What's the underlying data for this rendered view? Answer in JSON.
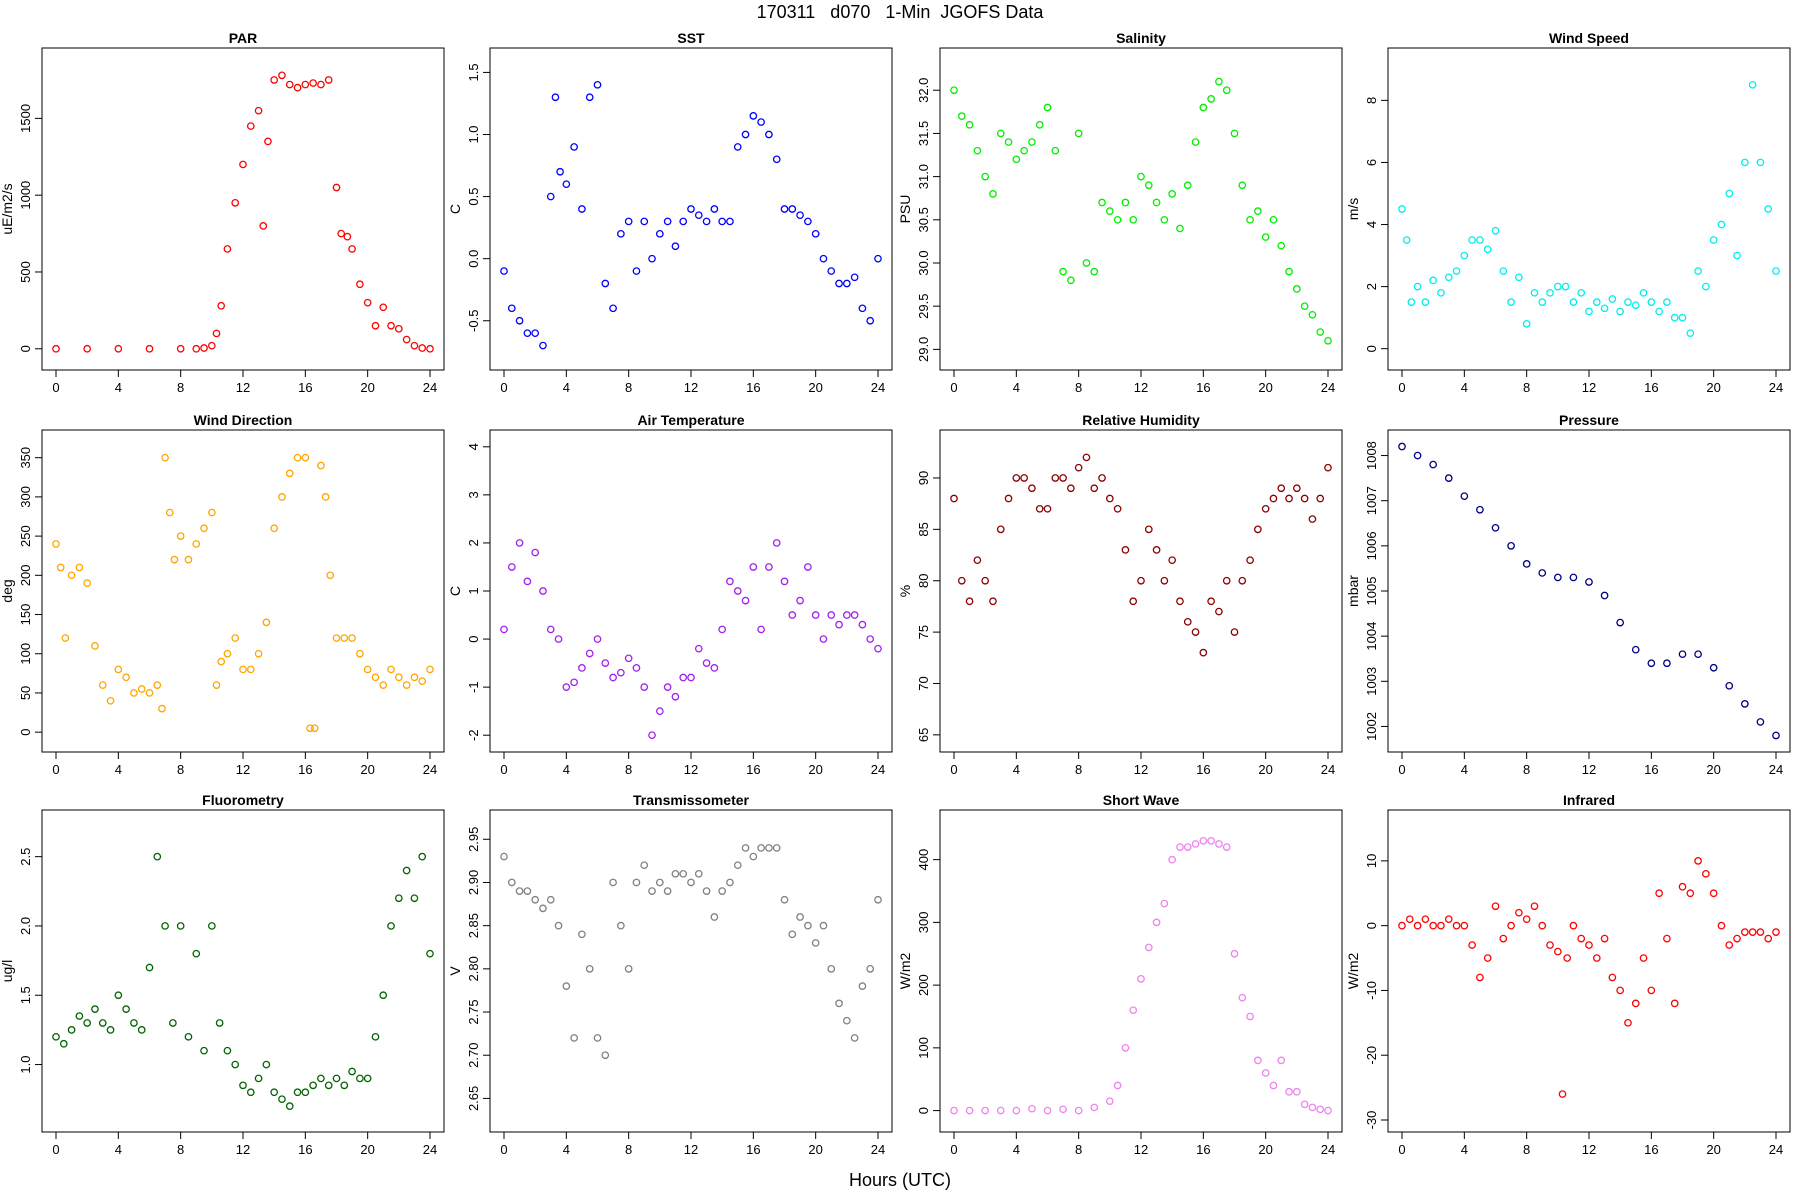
{
  "header": {
    "title": "170311   d070   1-Min  JGOFS Data"
  },
  "footer": {
    "xlabel": "Hours (UTC)"
  },
  "chart_data": [
    {
      "type": "scatter",
      "title": "PAR",
      "ylabel": "uE/m2/s",
      "color": "#ff0000",
      "xlim": [
        0,
        24
      ],
      "ylim": [
        -60,
        1880
      ],
      "xticks": [
        0,
        4,
        8,
        12,
        16,
        20,
        24
      ],
      "yticks": [
        0,
        500,
        1000,
        1500
      ],
      "x": [
        0,
        2,
        4,
        6,
        8,
        9,
        9.5,
        10,
        10.3,
        10.6,
        11,
        11.5,
        12,
        12.5,
        13,
        13.3,
        13.6,
        14,
        14.5,
        15,
        15.5,
        16,
        16.5,
        17,
        17.5,
        18,
        18.3,
        18.7,
        19,
        19.5,
        20,
        20.5,
        21,
        21.5,
        22,
        22.5,
        23,
        23.5,
        24
      ],
      "y": [
        0,
        0,
        0,
        0,
        0,
        0,
        5,
        20,
        100,
        280,
        650,
        950,
        1200,
        1450,
        1550,
        800,
        1350,
        1750,
        1780,
        1720,
        1700,
        1720,
        1730,
        1720,
        1750,
        1050,
        750,
        730,
        650,
        420,
        300,
        150,
        270,
        150,
        130,
        60,
        20,
        5,
        0
      ]
    },
    {
      "type": "scatter",
      "title": "SST",
      "ylabel": "C",
      "color": "#0000ff",
      "xlim": [
        0,
        24
      ],
      "ylim": [
        -0.8,
        1.6
      ],
      "xticks": [
        0,
        4,
        8,
        12,
        16,
        20,
        24
      ],
      "yticks": [
        -0.5,
        0.0,
        0.5,
        1.0,
        1.5
      ],
      "x": [
        0,
        0.5,
        1,
        1.5,
        2,
        2.5,
        3,
        3.3,
        3.6,
        4,
        4.5,
        5,
        5.5,
        6,
        6.5,
        7,
        7.5,
        8,
        8.5,
        9,
        9.5,
        10,
        10.5,
        11,
        11.5,
        12,
        12.5,
        13,
        13.5,
        14,
        14.5,
        15,
        15.5,
        16,
        16.5,
        17,
        17.5,
        18,
        18.5,
        19,
        19.5,
        20,
        20.5,
        21,
        21.5,
        22,
        22.5,
        23,
        23.5,
        24
      ],
      "y": [
        -0.1,
        -0.4,
        -0.5,
        -0.6,
        -0.6,
        -0.7,
        0.5,
        1.3,
        0.7,
        0.6,
        0.9,
        0.4,
        1.3,
        1.4,
        -0.2,
        -0.4,
        0.2,
        0.3,
        -0.1,
        0.3,
        0.0,
        0.2,
        0.3,
        0.1,
        0.3,
        0.4,
        0.35,
        0.3,
        0.4,
        0.3,
        0.3,
        0.9,
        1.0,
        1.15,
        1.1,
        1.0,
        0.8,
        0.4,
        0.4,
        0.35,
        0.3,
        0.2,
        0.0,
        -0.1,
        -0.2,
        -0.2,
        -0.15,
        -0.4,
        -0.5,
        0.0
      ]
    },
    {
      "type": "scatter",
      "title": "Salinity",
      "ylabel": "PSU",
      "color": "#00ee00",
      "xlim": [
        0,
        24
      ],
      "ylim": [
        28.9,
        32.35
      ],
      "xticks": [
        0,
        4,
        8,
        12,
        16,
        20,
        24
      ],
      "yticks": [
        29.0,
        29.5,
        30.0,
        30.5,
        31.0,
        31.5,
        32.0
      ],
      "x": [
        0,
        0.5,
        1,
        1.5,
        2,
        2.5,
        3,
        3.5,
        4,
        4.5,
        5,
        5.5,
        6,
        6.5,
        7,
        7.5,
        8,
        8.5,
        9,
        9.5,
        10,
        10.5,
        11,
        11.5,
        12,
        12.5,
        13,
        13.5,
        14,
        14.5,
        15,
        15.5,
        16,
        16.5,
        17,
        17.5,
        18,
        18.5,
        19,
        19.5,
        20,
        20.5,
        21,
        21.5,
        22,
        22.5,
        23,
        23.5,
        24
      ],
      "y": [
        32.0,
        31.7,
        31.6,
        31.3,
        31.0,
        30.8,
        31.5,
        31.4,
        31.2,
        31.3,
        31.4,
        31.6,
        31.8,
        31.3,
        29.9,
        29.8,
        31.5,
        30.0,
        29.9,
        30.7,
        30.6,
        30.5,
        30.7,
        30.5,
        31.0,
        30.9,
        30.7,
        30.5,
        30.8,
        30.4,
        30.9,
        31.4,
        31.8,
        31.9,
        32.1,
        32.0,
        31.5,
        30.9,
        30.5,
        30.6,
        30.3,
        30.5,
        30.2,
        29.9,
        29.7,
        29.5,
        29.4,
        29.2,
        29.1
      ]
    },
    {
      "type": "scatter",
      "title": "Wind Speed",
      "ylabel": "m/s",
      "color": "#00eeee",
      "xlim": [
        0,
        24
      ],
      "ylim": [
        -0.3,
        9.3
      ],
      "xticks": [
        0,
        4,
        8,
        12,
        16,
        20,
        24
      ],
      "yticks": [
        0,
        2,
        4,
        6,
        8
      ],
      "x": [
        0,
        0.3,
        0.6,
        1,
        1.5,
        2,
        2.5,
        3,
        3.5,
        4,
        4.5,
        5,
        5.5,
        6,
        6.5,
        7,
        7.5,
        8,
        8.5,
        9,
        9.5,
        10,
        10.5,
        11,
        11.5,
        12,
        12.5,
        13,
        13.5,
        14,
        14.5,
        15,
        15.5,
        16,
        16.5,
        17,
        17.5,
        18,
        18.5,
        19,
        19.5,
        20,
        20.5,
        21,
        21.5,
        22,
        22.5,
        23,
        23.5,
        24
      ],
      "y": [
        4.5,
        3.5,
        1.5,
        2.0,
        1.5,
        2.2,
        1.8,
        2.3,
        2.5,
        3.0,
        3.5,
        3.5,
        3.2,
        3.8,
        2.5,
        1.5,
        2.3,
        0.8,
        1.8,
        1.5,
        1.8,
        2.0,
        2.0,
        1.5,
        1.8,
        1.2,
        1.5,
        1.3,
        1.6,
        1.2,
        1.5,
        1.4,
        1.8,
        1.5,
        1.2,
        1.5,
        1.0,
        1.0,
        0.5,
        2.5,
        2.0,
        3.5,
        4.0,
        5.0,
        3.0,
        6.0,
        8.5,
        6.0,
        4.5,
        2.5
      ]
    },
    {
      "type": "scatter",
      "title": "Wind Direction",
      "ylabel": "deg",
      "color": "#ffa500",
      "xlim": [
        0,
        24
      ],
      "ylim": [
        -10,
        370
      ],
      "xticks": [
        0,
        4,
        8,
        12,
        16,
        20,
        24
      ],
      "yticks": [
        0,
        50,
        100,
        150,
        200,
        250,
        300,
        350
      ],
      "x": [
        0,
        0.3,
        0.6,
        1,
        1.5,
        2,
        2.5,
        3,
        3.5,
        4,
        4.5,
        5,
        5.5,
        6,
        6.5,
        6.8,
        7,
        7.3,
        7.6,
        8,
        8.5,
        9,
        9.5,
        10,
        10.3,
        10.6,
        11,
        11.5,
        12,
        12.5,
        13,
        13.5,
        14,
        14.5,
        15,
        15.5,
        16,
        16.3,
        16.6,
        17,
        17.3,
        17.6,
        18,
        18.5,
        19,
        19.5,
        20,
        20.5,
        21,
        21.5,
        22,
        22.5,
        23,
        23.5,
        24
      ],
      "y": [
        240,
        210,
        120,
        200,
        210,
        190,
        110,
        60,
        40,
        80,
        70,
        50,
        55,
        50,
        60,
        30,
        350,
        280,
        220,
        250,
        220,
        240,
        260,
        280,
        60,
        90,
        100,
        120,
        80,
        80,
        100,
        140,
        260,
        300,
        330,
        350,
        350,
        5,
        5,
        340,
        300,
        200,
        120,
        120,
        120,
        100,
        80,
        70,
        60,
        80,
        70,
        60,
        70,
        65,
        80
      ]
    },
    {
      "type": "scatter",
      "title": "Air Temperature",
      "ylabel": "C",
      "color": "#a020f0",
      "xlim": [
        0,
        24
      ],
      "ylim": [
        -2.1,
        4.1
      ],
      "xticks": [
        0,
        4,
        8,
        12,
        16,
        20,
        24
      ],
      "yticks": [
        -2,
        -1,
        0,
        1,
        2,
        3,
        4
      ],
      "x": [
        0,
        0.5,
        1,
        1.5,
        2,
        2.5,
        3,
        3.5,
        4,
        4.5,
        5,
        5.5,
        6,
        6.5,
        7,
        7.5,
        8,
        8.5,
        9,
        9.5,
        10,
        10.5,
        11,
        11.5,
        12,
        12.5,
        13,
        13.5,
        14,
        14.5,
        15,
        15.5,
        16,
        16.5,
        17,
        17.5,
        18,
        18.5,
        19,
        19.5,
        20,
        20.5,
        21,
        21.5,
        22,
        22.5,
        23,
        23.5,
        24
      ],
      "y": [
        0.2,
        1.5,
        2.0,
        1.2,
        1.8,
        1.0,
        0.2,
        0.0,
        -1.0,
        -0.9,
        -0.6,
        -0.3,
        0.0,
        -0.5,
        -0.8,
        -0.7,
        -0.4,
        -0.6,
        -1.0,
        -2.0,
        -1.5,
        -1.0,
        -1.2,
        -0.8,
        -0.8,
        -0.2,
        -0.5,
        -0.6,
        0.2,
        1.2,
        1.0,
        0.8,
        1.5,
        0.2,
        1.5,
        2.0,
        1.2,
        0.5,
        0.8,
        1.5,
        0.5,
        0.0,
        0.5,
        0.3,
        0.5,
        0.5,
        0.3,
        0.0,
        -0.2
      ]
    },
    {
      "type": "scatter",
      "title": "Relative Humidity",
      "ylabel": "%",
      "color": "#8b0000",
      "xlim": [
        0,
        24
      ],
      "ylim": [
        64.5,
        93.5
      ],
      "xticks": [
        0,
        4,
        8,
        12,
        16,
        20,
        24
      ],
      "yticks": [
        65,
        70,
        75,
        80,
        85,
        90
      ],
      "x": [
        0,
        0.5,
        1,
        1.5,
        2,
        2.5,
        3,
        3.5,
        4,
        4.5,
        5,
        5.5,
        6,
        6.5,
        7,
        7.5,
        8,
        8.5,
        9,
        9.5,
        10,
        10.5,
        11,
        11.5,
        12,
        12.5,
        13,
        13.5,
        14,
        14.5,
        15,
        15.5,
        16,
        16.5,
        17,
        17.5,
        18,
        18.5,
        19,
        19.5,
        20,
        20.5,
        21,
        21.5,
        22,
        22.5,
        23,
        23.5,
        24
      ],
      "y": [
        88,
        80,
        78,
        82,
        80,
        78,
        85,
        88,
        90,
        90,
        89,
        87,
        87,
        90,
        90,
        89,
        91,
        92,
        89,
        90,
        88,
        87,
        83,
        78,
        80,
        85,
        83,
        80,
        82,
        78,
        76,
        75,
        73,
        78,
        77,
        80,
        75,
        80,
        82,
        85,
        87,
        88,
        89,
        88,
        89,
        88,
        86,
        88,
        91
      ]
    },
    {
      "type": "scatter",
      "title": "Pressure",
      "ylabel": "mbar",
      "color": "#000080",
      "xlim": [
        0,
        24
      ],
      "ylim": [
        1001.7,
        1008.3
      ],
      "xticks": [
        0,
        4,
        8,
        12,
        16,
        20,
        24
      ],
      "yticks": [
        1002,
        1003,
        1004,
        1005,
        1006,
        1007,
        1008
      ],
      "x": [
        0,
        1,
        2,
        3,
        4,
        5,
        6,
        7,
        8,
        9,
        10,
        11,
        12,
        13,
        14,
        15,
        16,
        17,
        18,
        19,
        20,
        21,
        22,
        23,
        24
      ],
      "y": [
        1008.2,
        1008.0,
        1007.8,
        1007.5,
        1007.1,
        1006.8,
        1006.4,
        1006.0,
        1005.6,
        1005.4,
        1005.3,
        1005.3,
        1005.2,
        1004.9,
        1004.3,
        1003.7,
        1003.4,
        1003.4,
        1003.6,
        1003.6,
        1003.3,
        1002.9,
        1002.5,
        1002.1,
        1001.8
      ]
    },
    {
      "type": "scatter",
      "title": "Fluorometry",
      "ylabel": "ug/l",
      "color": "#006400",
      "xlim": [
        0,
        24
      ],
      "ylim": [
        0.6,
        2.75
      ],
      "xticks": [
        0,
        4,
        8,
        12,
        16,
        20,
        24
      ],
      "yticks": [
        1.0,
        1.5,
        2.0,
        2.5
      ],
      "x": [
        0,
        0.5,
        1,
        1.5,
        2,
        2.5,
        3,
        3.5,
        4,
        4.5,
        5,
        5.5,
        6,
        6.5,
        7,
        7.5,
        8,
        8.5,
        9,
        9.5,
        10,
        10.5,
        11,
        11.5,
        12,
        12.5,
        13,
        13.5,
        14,
        14.5,
        15,
        15.5,
        16,
        16.5,
        17,
        17.5,
        18,
        18.5,
        19,
        19.5,
        20,
        20.5,
        21,
        21.5,
        22,
        22.5,
        23,
        23.5,
        24
      ],
      "y": [
        1.2,
        1.15,
        1.25,
        1.35,
        1.3,
        1.4,
        1.3,
        1.25,
        1.5,
        1.4,
        1.3,
        1.25,
        1.7,
        2.5,
        2.0,
        1.3,
        2.0,
        1.2,
        1.8,
        1.1,
        2.0,
        1.3,
        1.1,
        1.0,
        0.85,
        0.8,
        0.9,
        1.0,
        0.8,
        0.75,
        0.7,
        0.8,
        0.8,
        0.85,
        0.9,
        0.85,
        0.9,
        0.85,
        0.95,
        0.9,
        0.9,
        1.2,
        1.5,
        2.0,
        2.2,
        2.4,
        2.2,
        2.5,
        1.8
      ]
    },
    {
      "type": "scatter",
      "title": "Transmissometer",
      "ylabel": "V",
      "color": "#808080",
      "xlim": [
        0,
        24
      ],
      "ylim": [
        2.625,
        2.97
      ],
      "xticks": [
        0,
        4,
        8,
        12,
        16,
        20,
        24
      ],
      "yticks": [
        2.65,
        2.7,
        2.75,
        2.8,
        2.85,
        2.9,
        2.95
      ],
      "x": [
        0,
        0.5,
        1,
        1.5,
        2,
        2.5,
        3,
        3.5,
        4,
        4.5,
        5,
        5.5,
        6,
        6.5,
        7,
        7.5,
        8,
        8.5,
        9,
        9.5,
        10,
        10.5,
        11,
        11.5,
        12,
        12.5,
        13,
        13.5,
        14,
        14.5,
        15,
        15.5,
        16,
        16.5,
        17,
        17.5,
        18,
        18.5,
        19,
        19.5,
        20,
        20.5,
        21,
        21.5,
        22,
        22.5,
        23,
        23.5,
        24
      ],
      "y": [
        2.93,
        2.9,
        2.89,
        2.89,
        2.88,
        2.87,
        2.88,
        2.85,
        2.78,
        2.72,
        2.84,
        2.8,
        2.72,
        2.7,
        2.9,
        2.85,
        2.8,
        2.9,
        2.92,
        2.89,
        2.9,
        2.89,
        2.91,
        2.91,
        2.9,
        2.91,
        2.89,
        2.86,
        2.89,
        2.9,
        2.92,
        2.94,
        2.93,
        2.94,
        2.94,
        2.94,
        2.88,
        2.84,
        2.86,
        2.85,
        2.83,
        2.85,
        2.8,
        2.76,
        2.74,
        2.72,
        2.78,
        2.8,
        2.88
      ]
    },
    {
      "type": "scatter",
      "title": "Short Wave",
      "ylabel": "W/m2",
      "color": "#ee82ee",
      "xlim": [
        0,
        24
      ],
      "ylim": [
        -15,
        460
      ],
      "xticks": [
        0,
        4,
        8,
        12,
        16,
        20,
        24
      ],
      "yticks": [
        0,
        100,
        200,
        300,
        400
      ],
      "x": [
        0,
        1,
        2,
        3,
        4,
        5,
        6,
        7,
        8,
        9,
        10,
        10.5,
        11,
        11.5,
        12,
        12.5,
        13,
        13.5,
        14,
        14.5,
        15,
        15.5,
        16,
        16.5,
        17,
        17.5,
        18,
        18.5,
        19,
        19.5,
        20,
        20.5,
        21,
        21.5,
        22,
        22.5,
        23,
        23.5,
        24
      ],
      "y": [
        0,
        0,
        0,
        0,
        0,
        3,
        0,
        2,
        0,
        5,
        15,
        40,
        100,
        160,
        210,
        260,
        300,
        330,
        400,
        420,
        420,
        425,
        430,
        430,
        425,
        420,
        250,
        180,
        150,
        80,
        60,
        40,
        80,
        30,
        30,
        10,
        5,
        2,
        0
      ]
    },
    {
      "type": "scatter",
      "title": "Infrared",
      "ylabel": "W/m2",
      "color": "#ff0000",
      "xlim": [
        0,
        24
      ],
      "ylim": [
        -30,
        16
      ],
      "xticks": [
        0,
        4,
        8,
        12,
        16,
        20,
        24
      ],
      "yticks": [
        -30,
        -20,
        -10,
        0,
        10
      ],
      "x": [
        0,
        0.5,
        1,
        1.5,
        2,
        2.5,
        3,
        3.5,
        4,
        4.5,
        5,
        5.5,
        6,
        6.5,
        7,
        7.5,
        8,
        8.5,
        9,
        9.5,
        10,
        10.3,
        10.6,
        11,
        11.5,
        12,
        12.5,
        13,
        13.5,
        14,
        14.5,
        15,
        15.5,
        16,
        16.5,
        17,
        17.5,
        18,
        18.5,
        19,
        19.5,
        20,
        20.5,
        21,
        21.5,
        22,
        22.5,
        23,
        23.5,
        24
      ],
      "y": [
        0,
        1,
        0,
        1,
        0,
        0,
        1,
        0,
        0,
        -3,
        -8,
        -5,
        3,
        -2,
        0,
        2,
        1,
        3,
        0,
        -3,
        -4,
        -26,
        -5,
        0,
        -2,
        -3,
        -5,
        -2,
        -8,
        -10,
        -15,
        -12,
        -5,
        -10,
        5,
        -2,
        -12,
        6,
        5,
        10,
        8,
        5,
        0,
        -3,
        -2,
        -1,
        -1,
        -1,
        -2,
        -1
      ]
    }
  ]
}
